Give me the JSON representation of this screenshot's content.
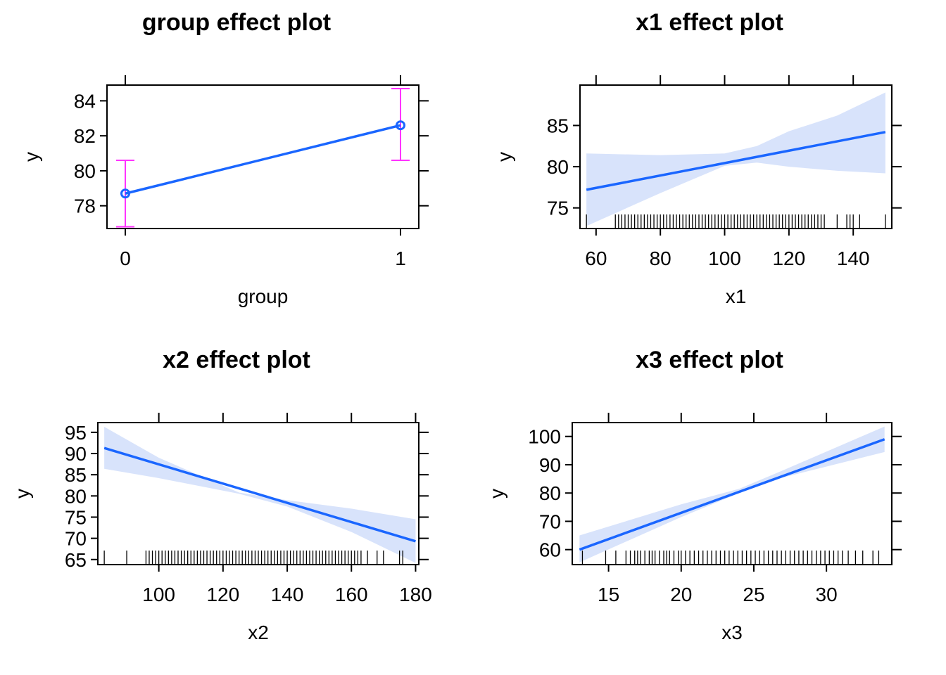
{
  "chart_data": [
    {
      "type": "line",
      "title": "group effect plot",
      "xlabel": "group",
      "ylabel": "y",
      "x_ticks": [
        "0",
        "1"
      ],
      "y_ticks": [
        78,
        80,
        82,
        84
      ],
      "ylim": [
        76.7,
        84.9
      ],
      "categories": [
        "0",
        "1"
      ],
      "values": [
        78.7,
        82.6
      ],
      "lower": [
        76.8,
        80.6
      ],
      "upper": [
        80.6,
        84.7
      ],
      "line_color": "#1a66ff",
      "errorbar_color": "#ff33ff",
      "grid": false
    },
    {
      "type": "line",
      "title": "x1 effect plot",
      "xlabel": "x1",
      "ylabel": "y",
      "x_ticks": [
        60,
        80,
        100,
        120,
        140
      ],
      "y_ticks": [
        75,
        80,
        85
      ],
      "xlim": [
        55,
        152
      ],
      "ylim": [
        72.5,
        89.9
      ],
      "x": [
        57,
        150
      ],
      "values": [
        77.2,
        84.2
      ],
      "band_x": [
        57,
        80,
        100,
        110,
        120,
        135,
        150
      ],
      "band_lower": [
        72.8,
        76.8,
        80.1,
        80.5,
        80.0,
        79.5,
        79.2
      ],
      "band_upper": [
        81.6,
        81.4,
        81.6,
        82.5,
        84.3,
        86.2,
        89.0
      ],
      "rug": [
        57,
        66,
        67,
        68,
        69,
        70,
        71,
        72,
        73,
        74,
        75,
        76,
        77,
        78,
        79,
        80,
        81,
        82,
        83,
        84,
        85,
        86,
        87,
        88,
        89,
        90,
        91,
        92,
        93,
        94,
        95,
        96,
        97,
        98,
        99,
        100,
        101,
        102,
        103,
        104,
        105,
        106,
        107,
        108,
        109,
        110,
        111,
        112,
        113,
        114,
        115,
        116,
        117,
        118,
        119,
        120,
        121,
        122,
        123,
        124,
        125,
        126,
        127,
        128,
        129,
        130,
        131,
        135,
        138,
        139,
        140,
        142,
        150
      ],
      "line_color": "#1a66ff",
      "band_color": "#d8e3fb",
      "grid": false
    },
    {
      "type": "line",
      "title": "x2 effect plot",
      "xlabel": "x2",
      "ylabel": "y",
      "x_ticks": [
        100,
        120,
        140,
        160,
        180
      ],
      "y_ticks": [
        65,
        70,
        75,
        80,
        85,
        90,
        95
      ],
      "xlim": [
        81,
        181
      ],
      "ylim": [
        63.8,
        97.3
      ],
      "x": [
        83,
        180
      ],
      "values": [
        91.3,
        69.3
      ],
      "band_x": [
        83,
        100,
        125,
        140,
        160,
        180
      ],
      "band_lower": [
        86.4,
        84.2,
        80.5,
        77.5,
        71.5,
        64.2
      ],
      "band_upper": [
        96.3,
        89.0,
        80.8,
        79.0,
        77.0,
        74.5
      ],
      "rug": [
        83,
        90,
        96,
        97,
        98,
        99,
        100,
        101,
        102,
        103,
        104,
        105,
        106,
        107,
        108,
        109,
        110,
        111,
        112,
        113,
        114,
        115,
        116,
        117,
        118,
        119,
        120,
        121,
        122,
        123,
        124,
        125,
        126,
        127,
        128,
        129,
        130,
        131,
        132,
        133,
        134,
        135,
        136,
        137,
        138,
        139,
        140,
        141,
        142,
        143,
        144,
        145,
        146,
        147,
        148,
        149,
        150,
        151,
        152,
        153,
        154,
        155,
        156,
        157,
        158,
        159,
        160,
        161,
        162,
        163,
        165,
        168,
        170,
        175,
        176
      ],
      "line_color": "#1a66ff",
      "band_color": "#d8e3fb",
      "grid": false
    },
    {
      "type": "line",
      "title": "x3 effect plot",
      "xlabel": "x3",
      "ylabel": "y",
      "x_ticks": [
        15,
        20,
        25,
        30
      ],
      "y_ticks": [
        60,
        70,
        80,
        90,
        100
      ],
      "xlim": [
        12.5,
        34.5
      ],
      "ylim": [
        54.7,
        104.9
      ],
      "x": [
        13,
        34
      ],
      "values": [
        60,
        99
      ],
      "band_x": [
        13,
        20,
        24,
        27,
        34
      ],
      "band_lower": [
        55.5,
        71.5,
        80.0,
        85.5,
        94.5
      ],
      "band_upper": [
        65.0,
        76.0,
        81.5,
        88.0,
        103.5
      ],
      "rug": [
        13.2,
        14.8,
        15.5,
        16.2,
        16.5,
        16.8,
        17.0,
        17.2,
        17.5,
        17.8,
        18.0,
        18.2,
        18.5,
        18.8,
        19.0,
        19.2,
        19.5,
        19.8,
        20.0,
        20.3,
        20.6,
        20.9,
        21.2,
        21.5,
        21.8,
        22.1,
        22.4,
        22.7,
        23.0,
        23.3,
        23.6,
        23.9,
        24.2,
        24.5,
        24.8,
        25.1,
        25.4,
        25.7,
        26.0,
        26.3,
        26.6,
        26.9,
        27.2,
        27.5,
        27.8,
        28.1,
        28.4,
        28.7,
        29.0,
        29.3,
        29.6,
        29.9,
        30.2,
        30.5,
        30.8,
        31.1,
        31.5,
        32.0,
        32.5,
        33.2,
        33.6
      ],
      "line_color": "#1a66ff",
      "band_color": "#d8e3fb",
      "grid": false
    }
  ]
}
